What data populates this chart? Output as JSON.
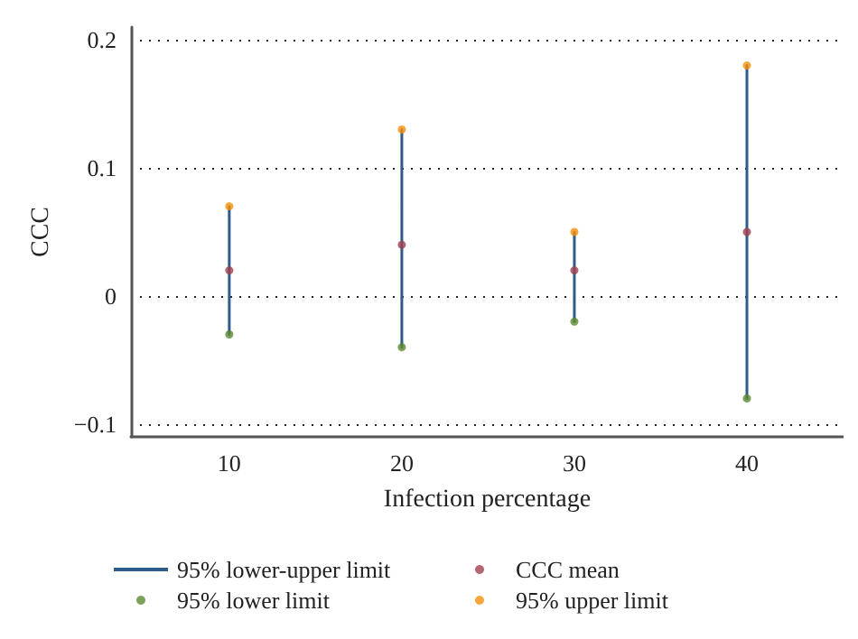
{
  "chart_data": {
    "type": "scatter",
    "xlabel": "Infection percentage",
    "ylabel": "CCC",
    "x": [
      10,
      20,
      30,
      40
    ],
    "series": [
      {
        "name": "95% lower-upper limit",
        "type": "line",
        "marker": "none",
        "color": "#2e5b8a",
        "x": [
          10,
          10,
          null,
          20,
          20,
          null,
          30,
          30,
          null,
          40,
          40
        ],
        "values": [
          -0.03,
          0.07,
          null,
          -0.04,
          0.13,
          null,
          -0.02,
          0.05,
          null,
          -0.08,
          0.18
        ]
      },
      {
        "name": "CCC mean",
        "color": "#a0404f",
        "values": [
          0.02,
          0.04,
          0.02,
          0.05
        ]
      },
      {
        "name": "95% lower limit",
        "color": "#5b8a2e",
        "values": [
          -0.03,
          -0.04,
          -0.02,
          -0.08
        ]
      },
      {
        "name": "95% upper limit",
        "color": "#f5900a",
        "values": [
          0.07,
          0.13,
          0.05,
          0.18
        ]
      }
    ],
    "xlim": [
      4.3,
      45.6
    ],
    "xticks": [
      10,
      20,
      30,
      40
    ],
    "ylim": [
      -0.11,
      0.21
    ],
    "yticks": [
      -0.1,
      0,
      0.1,
      0.2
    ],
    "grid": "y",
    "legend": "bottom",
    "marker": "circle",
    "line_style": "solid"
  }
}
